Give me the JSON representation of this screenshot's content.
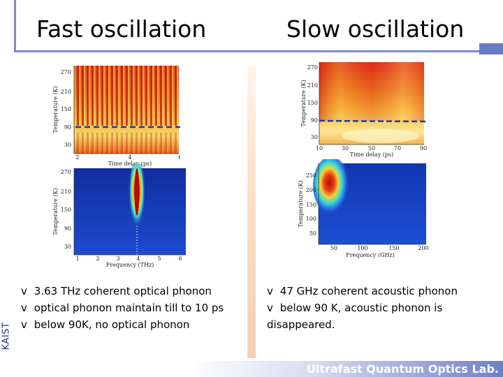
{
  "slide": {
    "title_left": "Fast oscillation",
    "title_right": "Slow oscillation",
    "logo_text": "KAIST",
    "footer": "Ultrafast Quantum Optics Lab.",
    "bullet_glyph": "v",
    "bullets_left": [
      "3.63 THz coherent optical phonon",
      "optical phonon maintain till to 10 ps",
      "below 90K, no optical phonon"
    ],
    "bullets_right": [
      "47 GHz coherent acoustic phonon",
      "below 90 K,  acoustic phonon is disappeared."
    ]
  },
  "colors": {
    "accent_bar": "#7c8ccf",
    "footer_text": "#ffffff",
    "dashed_line": "#1e3aa8",
    "map_hot": "#d81a0a",
    "map_warm": "#f7d33a",
    "map_cold": "#1d3fc4"
  },
  "plots": {
    "fast_time": {
      "ylabel": "Temperature (K)",
      "xlabel": "Time delay (ps)",
      "yticks": [
        "270",
        "210",
        "150",
        "90",
        "30"
      ],
      "xticks": [
        "2",
        "4",
        "6"
      ]
    },
    "fast_freq": {
      "ylabel": "Temperature (K)",
      "xlabel": "Frequency (THz)",
      "yticks": [
        "270",
        "210",
        "150",
        "90",
        "30"
      ],
      "xticks": [
        "1",
        "2",
        "3",
        "4",
        "5",
        "6"
      ]
    },
    "slow_time": {
      "ylabel": "Temperature (K)",
      "xlabel": "Time delay (ps)",
      "yticks": [
        "270",
        "210",
        "150",
        "90",
        "30"
      ],
      "xticks": [
        "10",
        "30",
        "50",
        "70",
        "90"
      ]
    },
    "slow_freq": {
      "ylabel": "Temperature (K)",
      "xlabel": "Frequency (GHz)",
      "yticks": [
        "250",
        "200",
        "150",
        "100",
        "50"
      ],
      "xticks": [
        "50",
        "100",
        "150",
        "200"
      ]
    }
  }
}
